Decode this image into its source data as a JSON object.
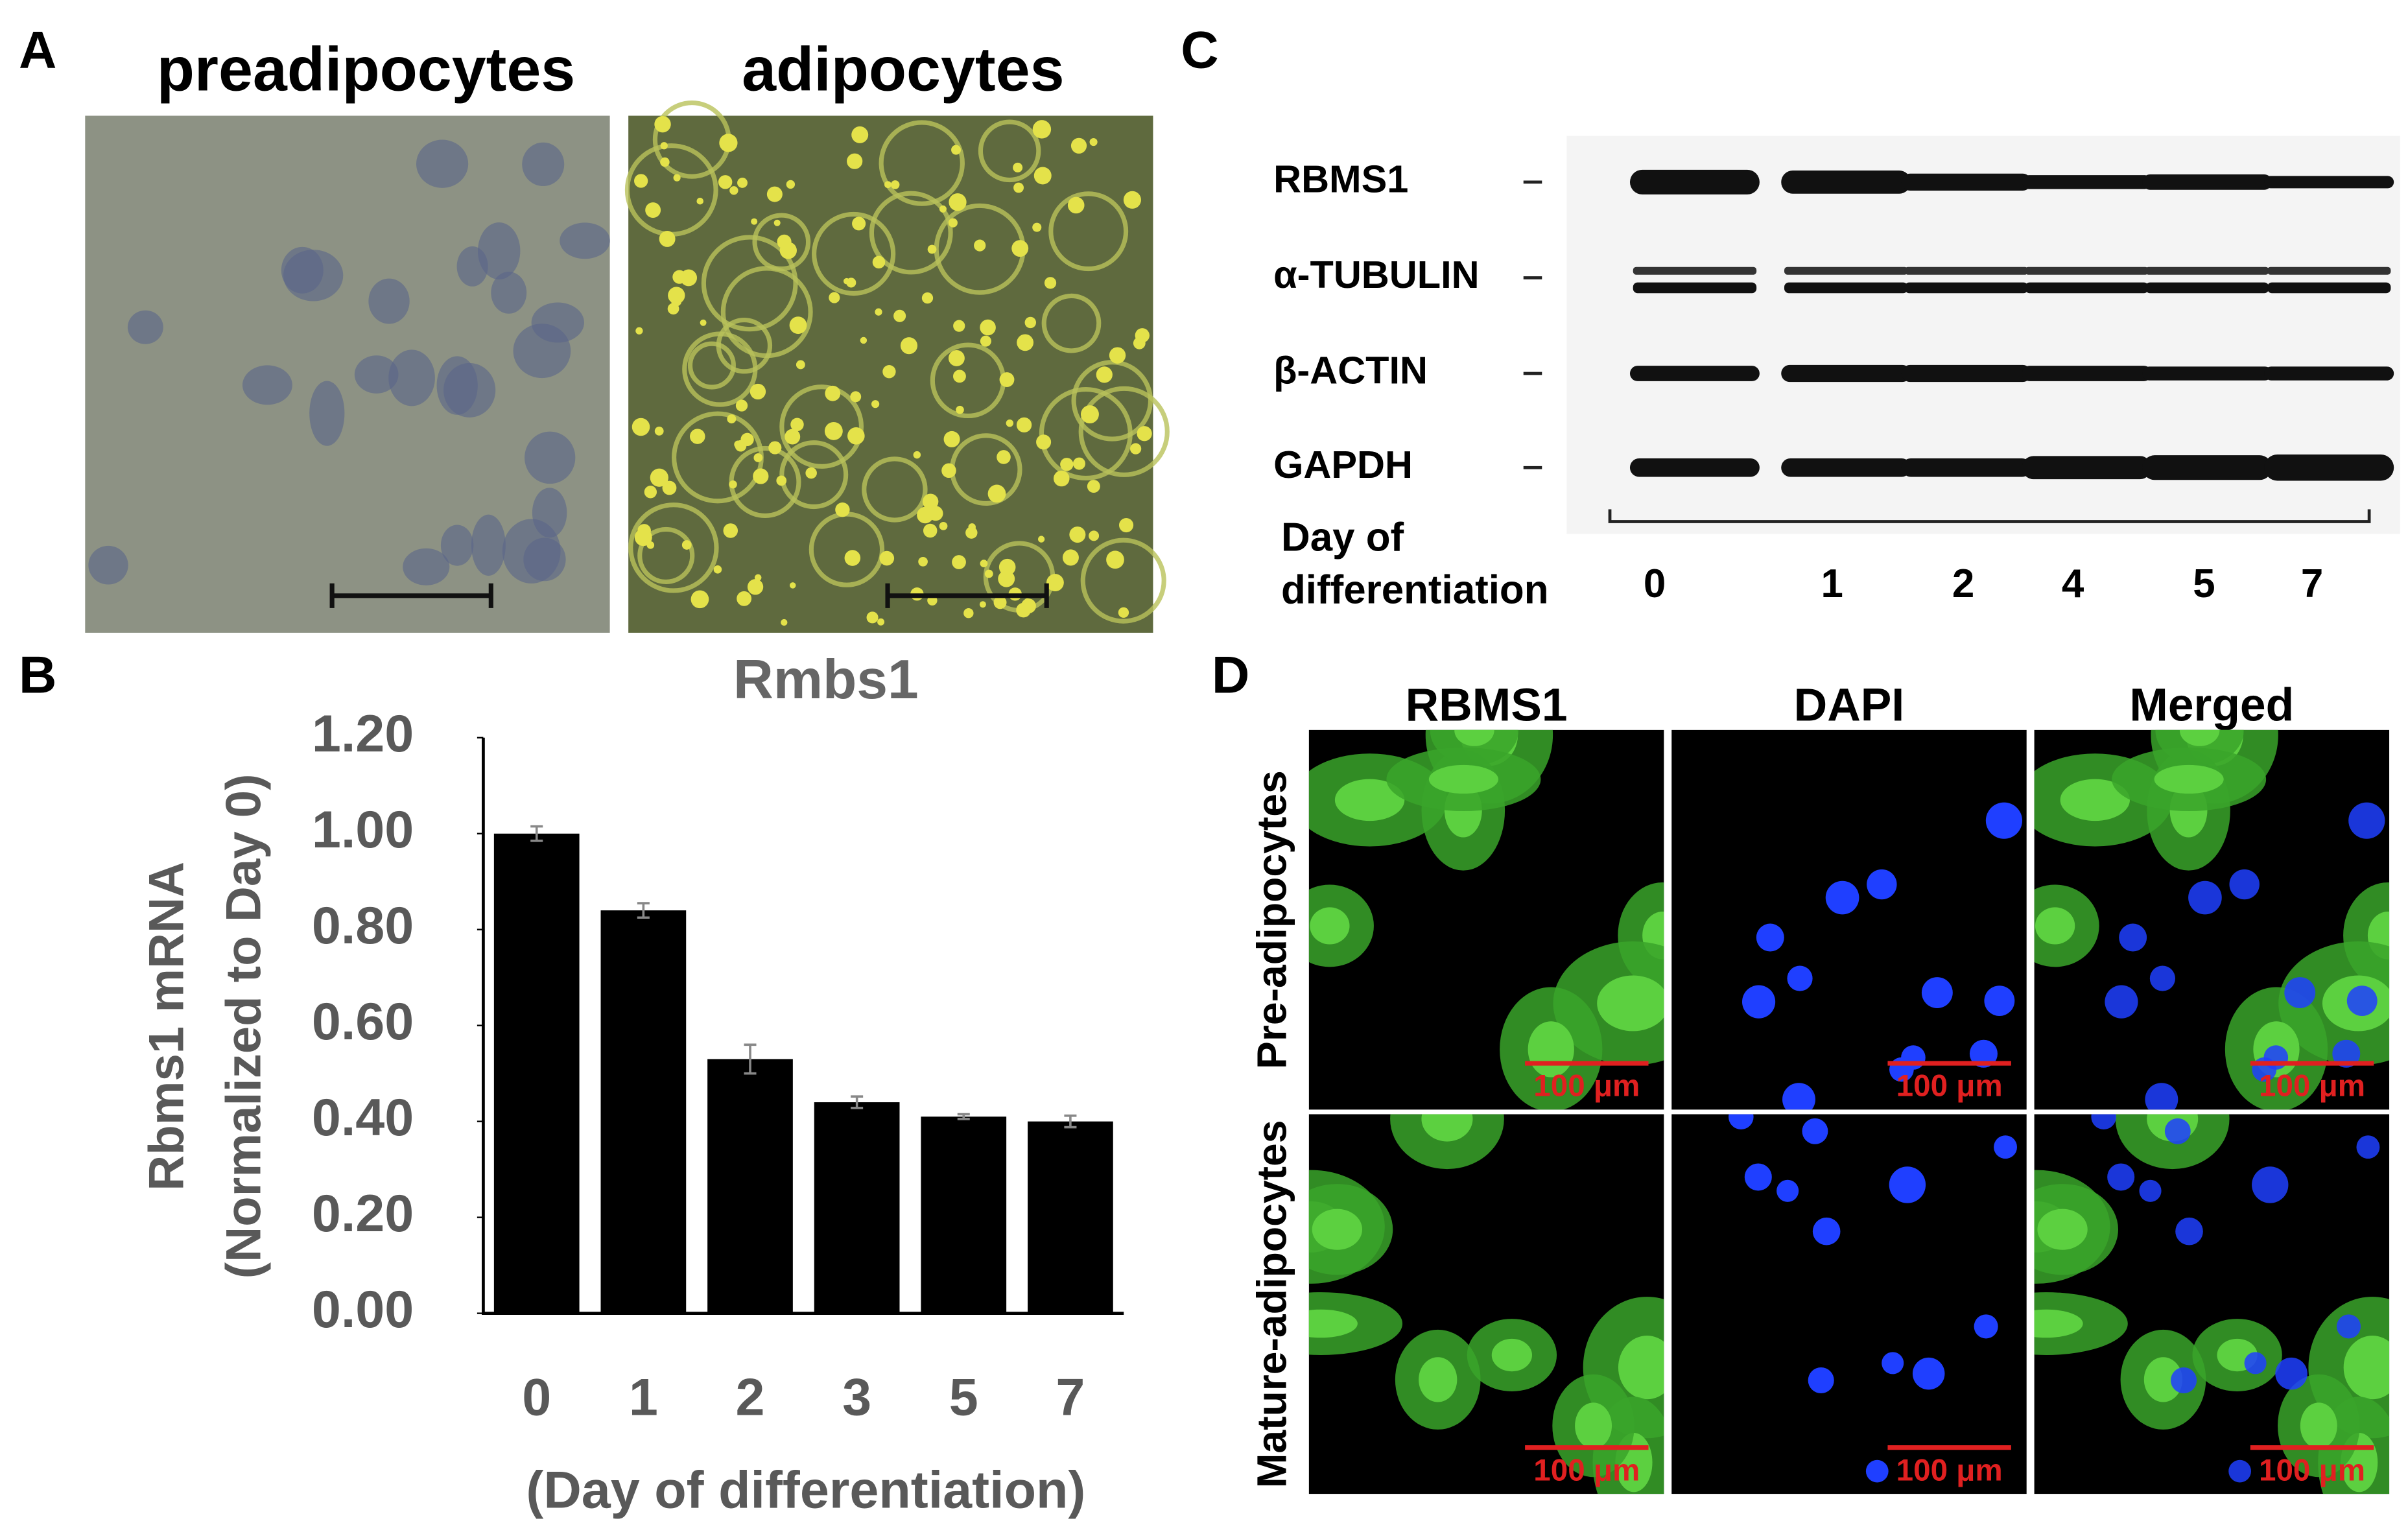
{
  "panel_a": {
    "label": "A",
    "titles": [
      "preadipocytes",
      "adipocytes"
    ]
  },
  "chart_data": {
    "type": "bar",
    "panel_label": "B",
    "title": "Rmbs1",
    "y_label": [
      "Rbms1 mRNA",
      "(Normalized to Day 0)"
    ],
    "x_label": "(Day of differentiation)",
    "categories": [
      "0",
      "1",
      "2",
      "3",
      "5",
      "7"
    ],
    "values": [
      1.0,
      0.84,
      0.53,
      0.44,
      0.41,
      0.4
    ],
    "errors": [
      0.015,
      0.015,
      0.03,
      0.012,
      0.005,
      0.012
    ],
    "color": "#000000",
    "ylim": [
      0,
      1.2
    ],
    "yticks": [
      {
        "value": 0,
        "label": "0.00"
      },
      {
        "value": 0.2,
        "label": "0.20"
      },
      {
        "value": 0.4,
        "label": "0.40"
      },
      {
        "value": 0.6,
        "label": "0.60"
      },
      {
        "value": 0.8,
        "label": "0.80"
      },
      {
        "value": 1.0,
        "label": "1.00"
      },
      {
        "value": 1.2,
        "label": "1.20"
      }
    ]
  },
  "panel_c": {
    "label": "C",
    "proteins": [
      "RBMS1",
      "α-TUBULIN",
      "β-ACTIN",
      "GAPDH"
    ],
    "x_label": [
      "Day of",
      "differentiation"
    ],
    "lanes": [
      "0",
      "1",
      "2",
      "4",
      "5",
      "7"
    ]
  },
  "panel_d": {
    "label": "D",
    "columns": [
      "RBMS1",
      "DAPI",
      "Merged"
    ],
    "rows": [
      "Pre-adipocytes",
      "Mature-adipocytes"
    ],
    "scale_bar": "100 μm"
  }
}
